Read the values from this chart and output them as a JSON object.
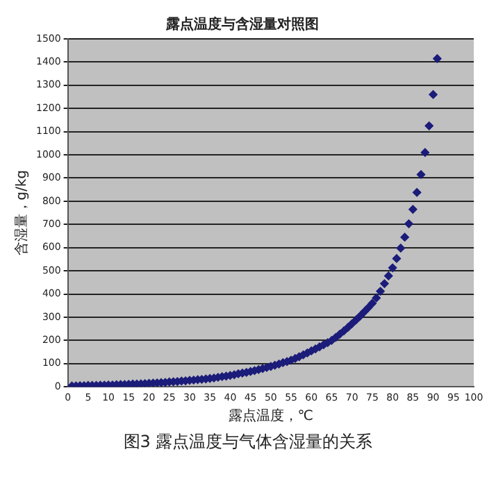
{
  "chart_data": {
    "type": "scatter",
    "title": "露点温度与含湿量对照图",
    "xlabel": "露点温度，℃",
    "ylabel": "含湿量，g/kg",
    "annotations": [
      "图3 露点温度与气体含湿量的关系"
    ],
    "x": [
      1,
      2,
      3,
      4,
      5,
      6,
      7,
      8,
      9,
      10,
      11,
      12,
      13,
      14,
      15,
      16,
      17,
      18,
      19,
      20,
      21,
      22,
      23,
      24,
      25,
      26,
      27,
      28,
      29,
      30,
      31,
      32,
      33,
      34,
      35,
      36,
      37,
      38,
      39,
      40,
      41,
      42,
      43,
      44,
      45,
      46,
      47,
      48,
      49,
      50,
      51,
      52,
      53,
      54,
      55,
      56,
      57,
      58,
      59,
      60,
      61,
      62,
      63,
      64,
      65,
      66,
      67,
      68,
      69,
      70,
      71,
      72,
      73,
      74,
      75,
      76,
      77,
      78,
      79,
      80,
      81,
      82,
      83,
      84,
      85,
      86,
      87,
      88,
      89,
      90,
      91
    ],
    "series": [
      {
        "color": "#1c1c7a",
        "values": [
          4,
          4,
          5,
          5,
          6,
          6,
          6,
          7,
          7,
          8,
          8,
          9,
          10,
          10,
          11,
          12,
          12,
          13,
          14,
          15,
          16,
          17,
          18,
          19,
          21,
          22,
          23,
          25,
          26,
          28,
          29,
          31,
          32,
          34,
          36,
          38,
          41,
          44,
          46,
          49,
          52,
          56,
          59,
          62,
          66,
          70,
          74,
          79,
          83,
          88,
          93,
          98,
          104,
          109,
          115,
          122,
          130,
          138,
          146,
          155,
          163,
          172,
          181,
          190,
          200,
          213,
          227,
          241,
          256,
          272,
          288,
          305,
          323,
          341,
          360,
          383,
          412,
          445,
          478,
          513,
          553,
          598,
          645,
          703,
          765,
          838,
          915,
          1010,
          1125,
          1260,
          1415
        ]
      }
    ],
    "xlim": [
      0,
      100
    ],
    "xticks": [
      0,
      5,
      10,
      15,
      20,
      25,
      30,
      35,
      40,
      45,
      50,
      55,
      60,
      65,
      70,
      75,
      80,
      85,
      90,
      95,
      100
    ],
    "ylim": [
      0,
      1500
    ],
    "yticks": [
      0,
      100,
      200,
      300,
      400,
      500,
      600,
      700,
      800,
      900,
      1000,
      1100,
      1200,
      1300,
      1400,
      1500
    ],
    "grid": "y",
    "legend": false,
    "marker": "diamond"
  }
}
